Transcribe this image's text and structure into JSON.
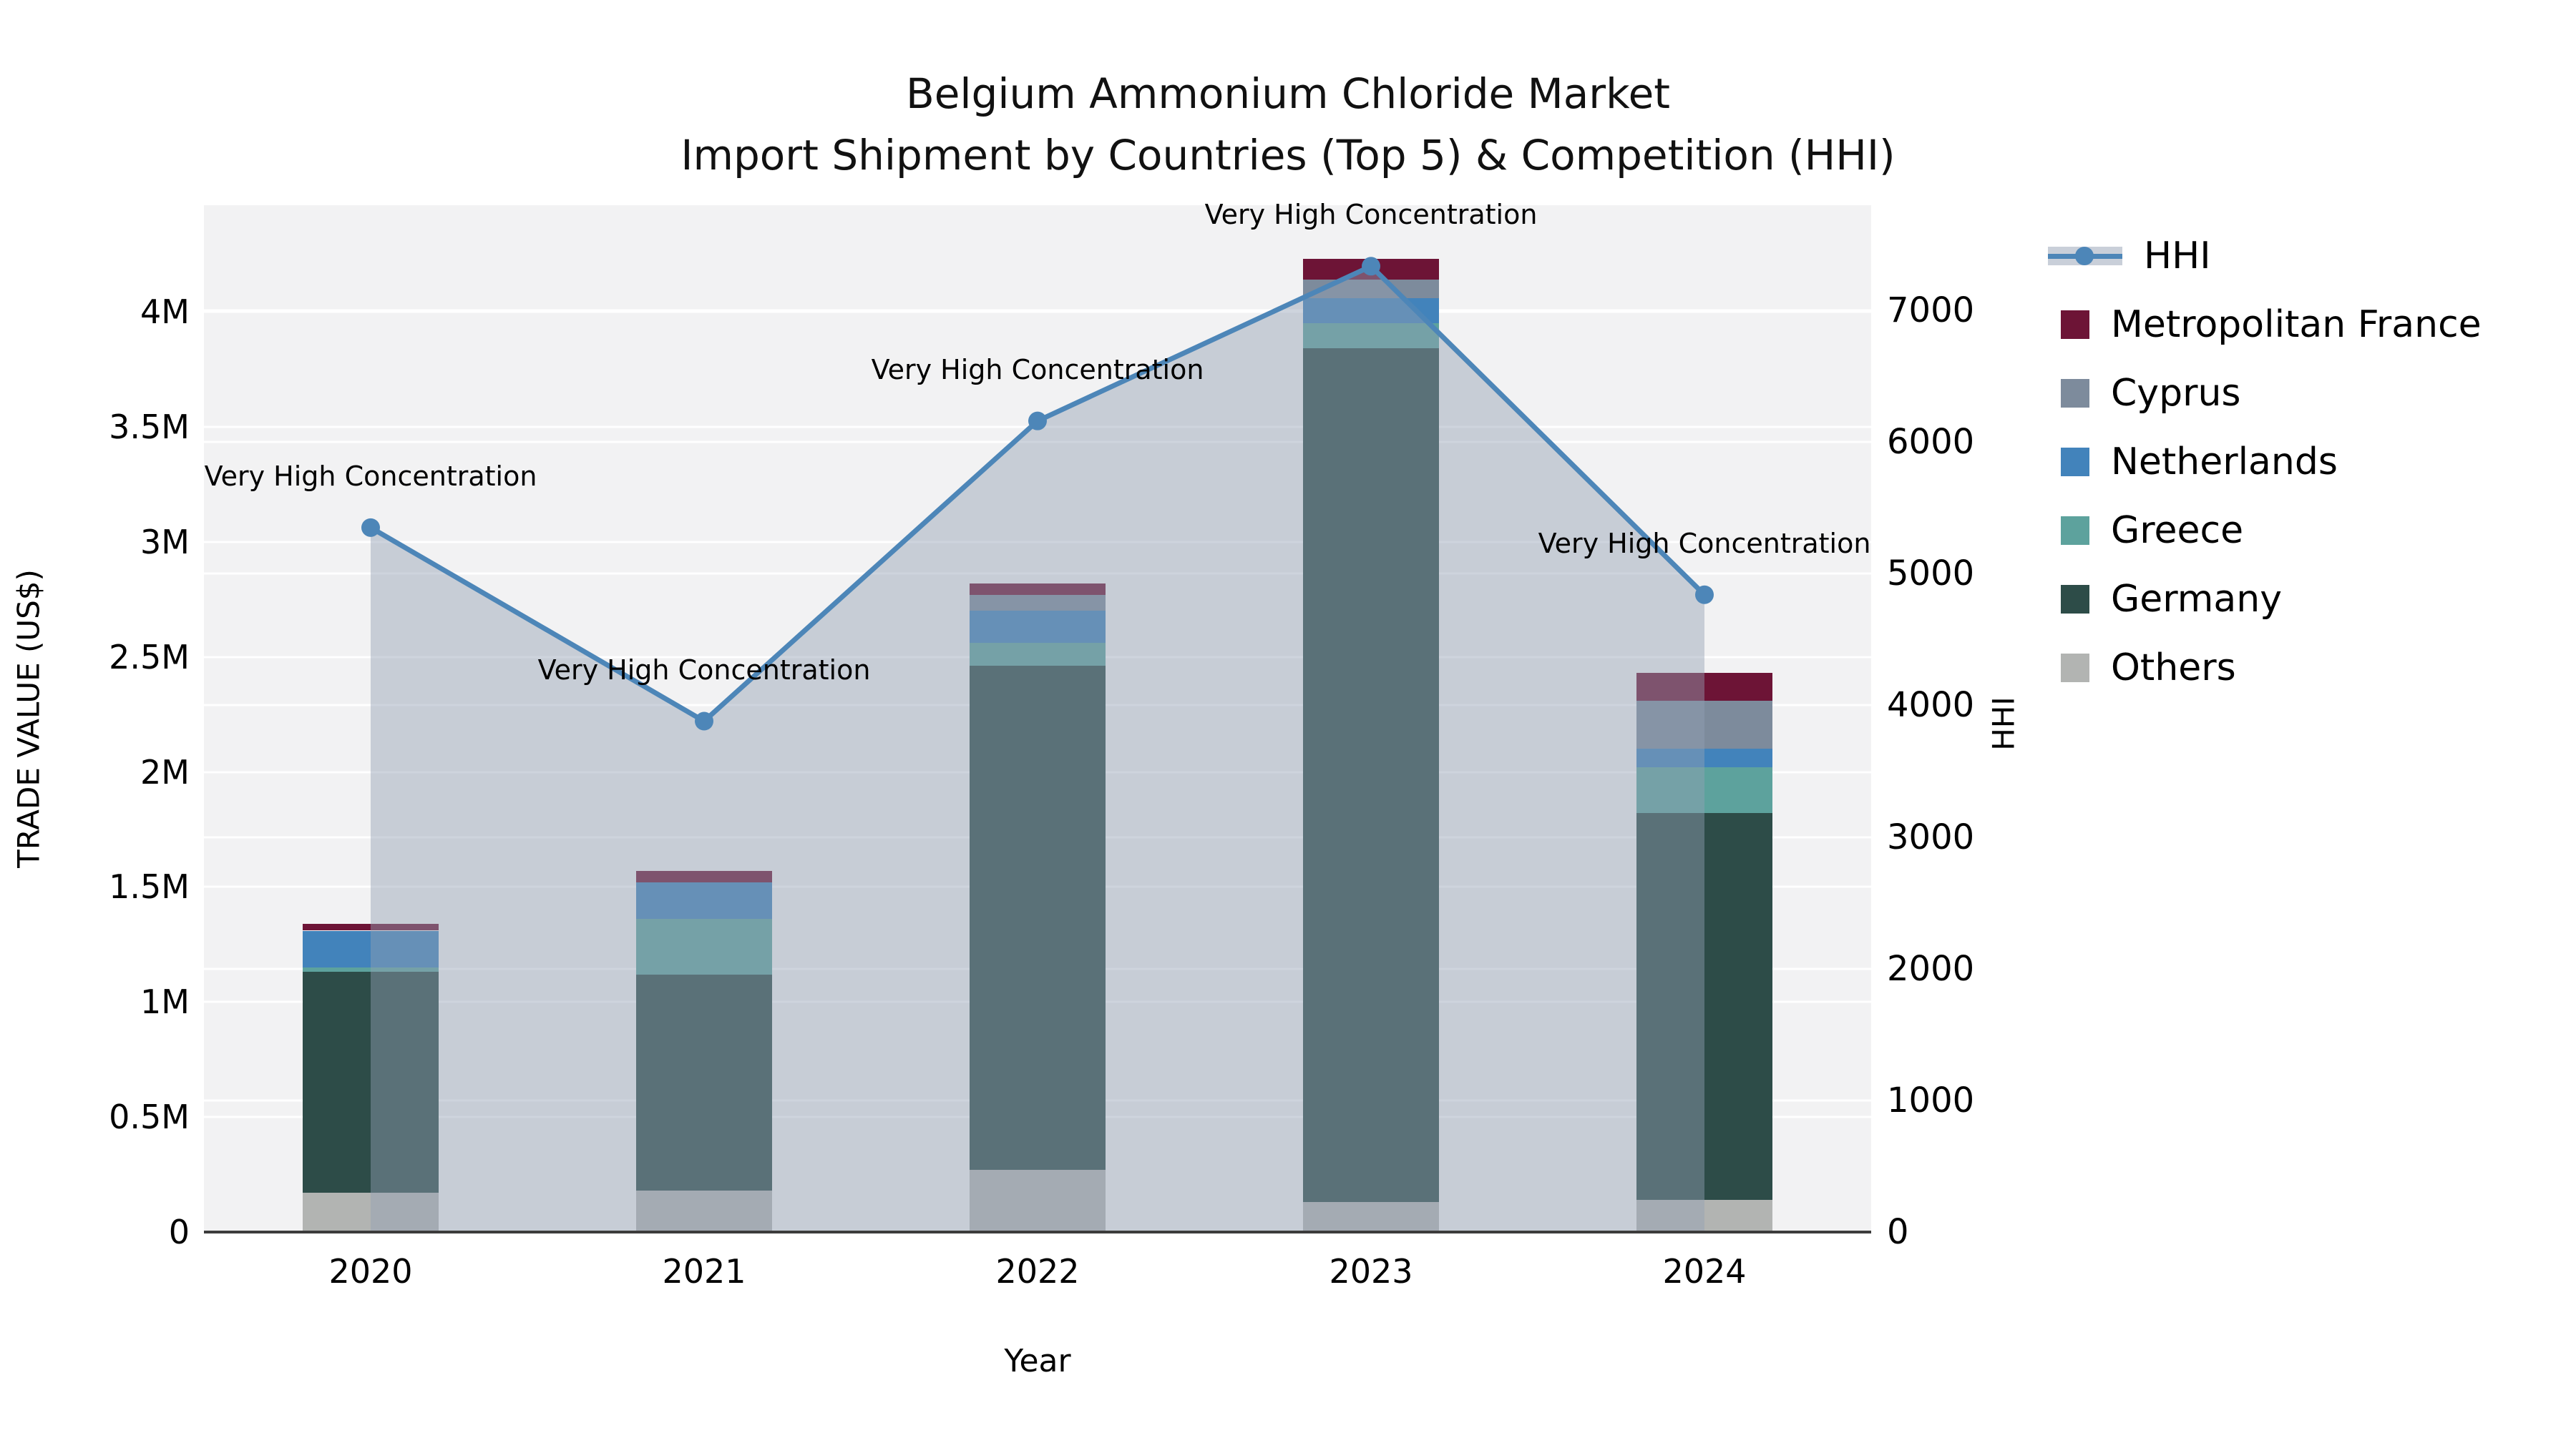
{
  "title": {
    "line1": "Belgium Ammonium Chloride Market",
    "line2": "Import Shipment by Countries (Top 5) & Competition (HHI)"
  },
  "axes": {
    "left_title": "TRADE VALUE (US$)",
    "bottom_title": "Year",
    "right_title": "HHI",
    "left_tick_labels": [
      "0",
      "0.5M",
      "1M",
      "1.5M",
      "2M",
      "2.5M",
      "3M",
      "3.5M",
      "4M"
    ],
    "left_tick_values_musd": [
      0,
      0.5,
      1,
      1.5,
      2,
      2.5,
      3,
      3.5,
      4
    ],
    "right_tick_labels": [
      "0",
      "1000",
      "2000",
      "3000",
      "4000",
      "5000",
      "6000",
      "7000"
    ],
    "right_tick_values": [
      0,
      1000,
      2000,
      3000,
      4000,
      5000,
      6000,
      7000
    ]
  },
  "colors": {
    "plot_background": "#f2f2f3",
    "gridline": "#ffffff",
    "baseline": "#3c3c3c",
    "hhi_line": "#4d86b8",
    "hhi_area_fill": "rgba(146,160,180,0.45)",
    "hhi_legend_band": "#c9cfd9"
  },
  "legend": [
    {
      "label": "HHI",
      "type": "line",
      "color": "#4d86b8"
    },
    {
      "label": "Metropolitan France",
      "type": "swatch",
      "color": "#6d1436"
    },
    {
      "label": "Cyprus",
      "type": "swatch",
      "color": "#7d8b9c"
    },
    {
      "label": "Netherlands",
      "type": "swatch",
      "color": "#4283bb"
    },
    {
      "label": "Greece",
      "type": "swatch",
      "color": "#5da29d"
    },
    {
      "label": "Germany",
      "type": "swatch",
      "color": "#2d4c48"
    },
    {
      "label": "Others",
      "type": "swatch",
      "color": "#b2b4b2"
    }
  ],
  "chart_data": {
    "type": "bar",
    "subtype": "stacked-bars-with-line-overlay",
    "categories": [
      "2020",
      "2021",
      "2022",
      "2023",
      "2024"
    ],
    "xlabel": "Year",
    "ylabel_left": "TRADE VALUE (US$)",
    "ylabel_right": "HHI",
    "ylim_left_musd": [
      0,
      4.47
    ],
    "ylim_right_hhi": [
      0,
      7790
    ],
    "grid": true,
    "legend_position": "right",
    "bar_series_bottom_to_top": [
      {
        "name": "Others",
        "color": "#b2b4b2",
        "values_musd": [
          0.17,
          0.18,
          0.27,
          0.13,
          0.14
        ]
      },
      {
        "name": "Germany",
        "color": "#2d4c48",
        "values_musd": [
          0.96,
          0.94,
          2.19,
          3.71,
          1.68
        ]
      },
      {
        "name": "Greece",
        "color": "#5da29d",
        "values_musd": [
          0.02,
          0.24,
          0.1,
          0.11,
          0.2
        ]
      },
      {
        "name": "Netherlands",
        "color": "#4283bb",
        "values_musd": [
          0.16,
          0.16,
          0.14,
          0.11,
          0.08
        ]
      },
      {
        "name": "Cyprus",
        "color": "#7d8b9c",
        "values_musd": [
          0.0,
          0.0,
          0.07,
          0.08,
          0.21
        ]
      },
      {
        "name": "Metropolitan France",
        "color": "#6d1436",
        "values_musd": [
          0.03,
          0.05,
          0.05,
          0.09,
          0.12
        ]
      }
    ],
    "bar_totals_musd": [
      1.34,
      1.57,
      2.82,
      4.23,
      2.43
    ],
    "line_series": {
      "name": "HHI",
      "color": "#4d86b8",
      "values": [
        5350,
        3880,
        6160,
        7335,
        4840
      ],
      "area_fill": "rgba(146,160,180,0.45)",
      "point_annotations": [
        "Very High Concentration",
        "Very High Concentration",
        "Very High Concentration",
        "Very High Concentration",
        "Very High Concentration"
      ]
    }
  }
}
